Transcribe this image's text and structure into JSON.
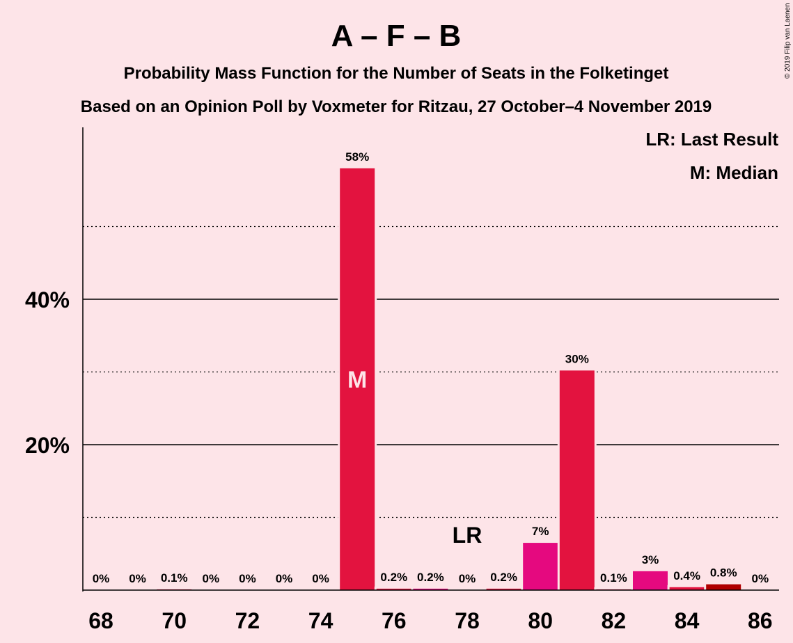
{
  "title": "A – F – B",
  "subtitle1": "Probability Mass Function for the Number of Seats in the Folketinget",
  "subtitle2": "Based on an Opinion Poll by Voxmeter for Ritzau, 27 October–4 November 2019",
  "copyright": "© 2019 Filip van Laenen",
  "legend": {
    "last_result": "LR: Last Result",
    "median": "M: Median"
  },
  "colors": {
    "background": "#fde4e8",
    "bar_red": "#e3133f",
    "bar_magenta": "#e5097f",
    "bar_dark_red": "#b00000"
  },
  "chart_data": {
    "type": "bar",
    "x": [
      68,
      69,
      70,
      71,
      72,
      73,
      74,
      75,
      76,
      77,
      78,
      79,
      80,
      81,
      82,
      83,
      84,
      85,
      86
    ],
    "values": [
      0,
      0,
      0.1,
      0,
      0,
      0,
      0,
      58,
      0.2,
      0.2,
      0,
      0.2,
      6.5,
      30.2,
      0.1,
      2.6,
      0.4,
      0.8,
      0
    ],
    "labels": [
      "0%",
      "0%",
      "0.1%",
      "0%",
      "0%",
      "0%",
      "0%",
      "58%",
      "0.2%",
      "0.2%",
      "0%",
      "0.2%",
      "7%",
      "30%",
      "0.1%",
      "3%",
      "0.4%",
      "0.8%",
      "0%"
    ],
    "bar_colors": [
      "red",
      "red",
      "red",
      "red",
      "red",
      "red",
      "red",
      "red",
      "red",
      "magenta",
      "red",
      "red",
      "magenta",
      "red",
      "red",
      "magenta",
      "red",
      "dark_red",
      "red"
    ],
    "x_ticks": [
      68,
      70,
      72,
      74,
      76,
      78,
      80,
      82,
      84,
      86
    ],
    "y_ticks": [
      {
        "value": 20,
        "label": "20%"
      },
      {
        "value": 40,
        "label": "40%"
      }
    ],
    "minor_gridlines": [
      10,
      30,
      50
    ],
    "ylim": [
      0,
      63
    ],
    "median_seat": 75,
    "median_marker": "M",
    "last_result_seat": 78,
    "last_result_marker": "LR",
    "legend_position": "top-right"
  }
}
